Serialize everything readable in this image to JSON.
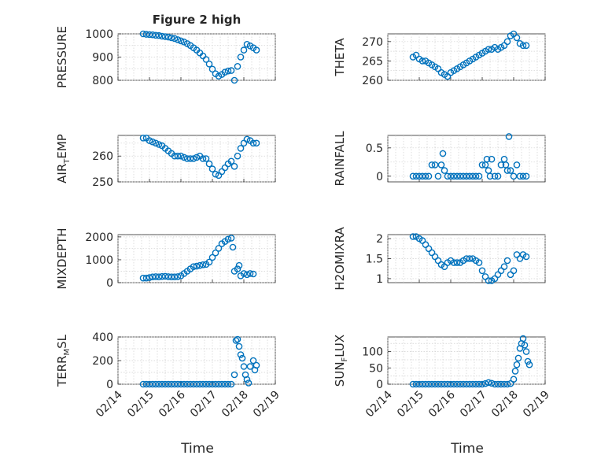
{
  "figure": {
    "title": "Figure 2 high",
    "xlabel": "Time",
    "x_tick_labels": [
      "02/14",
      "02/15",
      "02/16",
      "02/17",
      "02/18",
      "02/19"
    ]
  },
  "chart_data": [
    {
      "type": "scatter",
      "ylabel": "PRESSURE",
      "xlim": [
        0,
        5
      ],
      "ylim": [
        800,
        1000
      ],
      "yticks": [
        800,
        900,
        1000
      ],
      "x_tick_labels": [
        "02/14",
        "02/15",
        "02/16",
        "02/17",
        "02/18",
        "02/19"
      ],
      "marker_color": "#0072BD",
      "points": [
        [
          0.8,
          1000
        ],
        [
          0.9,
          998
        ],
        [
          1.0,
          997
        ],
        [
          1.1,
          996
        ],
        [
          1.2,
          994
        ],
        [
          1.3,
          993
        ],
        [
          1.4,
          990
        ],
        [
          1.5,
          988
        ],
        [
          1.6,
          986
        ],
        [
          1.7,
          983
        ],
        [
          1.8,
          980
        ],
        [
          1.9,
          975
        ],
        [
          2.0,
          970
        ],
        [
          2.1,
          965
        ],
        [
          2.2,
          958
        ],
        [
          2.3,
          950
        ],
        [
          2.4,
          940
        ],
        [
          2.5,
          930
        ],
        [
          2.6,
          918
        ],
        [
          2.7,
          905
        ],
        [
          2.8,
          890
        ],
        [
          2.9,
          870
        ],
        [
          3.0,
          848
        ],
        [
          3.1,
          828
        ],
        [
          3.2,
          818
        ],
        [
          3.3,
          825
        ],
        [
          3.4,
          835
        ],
        [
          3.5,
          840
        ],
        [
          3.6,
          842
        ],
        [
          3.7,
          800
        ],
        [
          3.8,
          860
        ],
        [
          3.9,
          900
        ],
        [
          4.0,
          930
        ],
        [
          4.1,
          955
        ],
        [
          4.2,
          948
        ],
        [
          4.3,
          940
        ],
        [
          4.4,
          930
        ]
      ]
    },
    {
      "type": "scatter",
      "ylabel": "THETA",
      "xlim": [
        0,
        5
      ],
      "ylim": [
        260,
        272
      ],
      "yticks": [
        260,
        265,
        270
      ],
      "x_tick_labels": [
        "02/14",
        "02/15",
        "02/16",
        "02/17",
        "02/18",
        "02/19"
      ],
      "marker_color": "#0072BD",
      "points": [
        [
          0.8,
          266
        ],
        [
          0.9,
          266.5
        ],
        [
          1.0,
          265.5
        ],
        [
          1.1,
          265
        ],
        [
          1.2,
          265
        ],
        [
          1.3,
          264.5
        ],
        [
          1.4,
          264
        ],
        [
          1.5,
          263.5
        ],
        [
          1.6,
          263
        ],
        [
          1.7,
          262
        ],
        [
          1.8,
          261.5
        ],
        [
          1.9,
          261
        ],
        [
          2.0,
          262
        ],
        [
          2.1,
          262.5
        ],
        [
          2.2,
          263
        ],
        [
          2.3,
          263.5
        ],
        [
          2.4,
          264
        ],
        [
          2.5,
          264.5
        ],
        [
          2.6,
          265
        ],
        [
          2.7,
          265.5
        ],
        [
          2.8,
          266
        ],
        [
          2.9,
          266.5
        ],
        [
          3.0,
          267
        ],
        [
          3.1,
          267.5
        ],
        [
          3.2,
          268
        ],
        [
          3.3,
          268
        ],
        [
          3.4,
          268.5
        ],
        [
          3.5,
          268
        ],
        [
          3.6,
          268.5
        ],
        [
          3.7,
          269
        ],
        [
          3.8,
          270
        ],
        [
          3.9,
          271.5
        ],
        [
          4.0,
          272
        ],
        [
          4.1,
          271
        ],
        [
          4.2,
          269.5
        ],
        [
          4.3,
          269
        ],
        [
          4.4,
          269
        ]
      ]
    },
    {
      "type": "scatter",
      "ylabel": "AIR_TEMP",
      "xlim": [
        0,
        5
      ],
      "ylim": [
        250,
        268
      ],
      "yticks": [
        250,
        260
      ],
      "x_tick_labels": [
        "02/14",
        "02/15",
        "02/16",
        "02/17",
        "02/18",
        "02/19"
      ],
      "marker_color": "#0072BD",
      "points": [
        [
          0.8,
          267
        ],
        [
          0.9,
          267
        ],
        [
          1.0,
          266
        ],
        [
          1.1,
          265.5
        ],
        [
          1.2,
          265
        ],
        [
          1.3,
          264.5
        ],
        [
          1.4,
          264
        ],
        [
          1.5,
          263
        ],
        [
          1.6,
          262
        ],
        [
          1.7,
          261
        ],
        [
          1.8,
          260
        ],
        [
          1.9,
          260
        ],
        [
          2.0,
          260
        ],
        [
          2.1,
          259.5
        ],
        [
          2.2,
          259
        ],
        [
          2.3,
          259
        ],
        [
          2.4,
          259
        ],
        [
          2.5,
          259.5
        ],
        [
          2.6,
          260
        ],
        [
          2.7,
          259
        ],
        [
          2.8,
          259
        ],
        [
          2.9,
          257
        ],
        [
          3.0,
          255
        ],
        [
          3.1,
          253
        ],
        [
          3.2,
          252.5
        ],
        [
          3.3,
          254
        ],
        [
          3.4,
          255.5
        ],
        [
          3.5,
          257
        ],
        [
          3.6,
          258
        ],
        [
          3.7,
          256
        ],
        [
          3.8,
          260
        ],
        [
          3.9,
          263
        ],
        [
          4.0,
          265
        ],
        [
          4.1,
          266.5
        ],
        [
          4.2,
          266
        ],
        [
          4.3,
          265
        ],
        [
          4.4,
          265
        ]
      ]
    },
    {
      "type": "scatter",
      "ylabel": "RAINFALL",
      "xlim": [
        0,
        5
      ],
      "ylim": [
        -0.1,
        0.72
      ],
      "yticks": [
        0,
        0.5
      ],
      "x_tick_labels": [
        "02/14",
        "02/15",
        "02/16",
        "02/17",
        "02/18",
        "02/19"
      ],
      "marker_color": "#0072BD",
      "points": [
        [
          0.8,
          0
        ],
        [
          0.9,
          0
        ],
        [
          1.0,
          0
        ],
        [
          1.1,
          0
        ],
        [
          1.2,
          0
        ],
        [
          1.3,
          0
        ],
        [
          1.4,
          0.2
        ],
        [
          1.5,
          0.2
        ],
        [
          1.6,
          0
        ],
        [
          1.7,
          0.2
        ],
        [
          1.75,
          0.4
        ],
        [
          1.8,
          0.1
        ],
        [
          1.9,
          0
        ],
        [
          2.0,
          0
        ],
        [
          2.1,
          0
        ],
        [
          2.2,
          0
        ],
        [
          2.3,
          0
        ],
        [
          2.4,
          0
        ],
        [
          2.5,
          0
        ],
        [
          2.6,
          0
        ],
        [
          2.7,
          0
        ],
        [
          2.8,
          0
        ],
        [
          2.9,
          0
        ],
        [
          3.0,
          0.2
        ],
        [
          3.1,
          0.2
        ],
        [
          3.15,
          0.3
        ],
        [
          3.2,
          0.1
        ],
        [
          3.25,
          0
        ],
        [
          3.3,
          0.3
        ],
        [
          3.4,
          0
        ],
        [
          3.5,
          0
        ],
        [
          3.6,
          0.2
        ],
        [
          3.7,
          0.3
        ],
        [
          3.75,
          0.2
        ],
        [
          3.8,
          0.1
        ],
        [
          3.85,
          0.7
        ],
        [
          3.9,
          0.1
        ],
        [
          4.0,
          0
        ],
        [
          4.1,
          0.2
        ],
        [
          4.2,
          0
        ],
        [
          4.3,
          0
        ],
        [
          4.4,
          0
        ]
      ]
    },
    {
      "type": "scatter",
      "ylabel": "MIXDEPTH",
      "xlim": [
        0,
        5
      ],
      "ylim": [
        0,
        2100
      ],
      "yticks": [
        0,
        1000,
        2000
      ],
      "x_tick_labels": [
        "02/14",
        "02/15",
        "02/16",
        "02/17",
        "02/18",
        "02/19"
      ],
      "marker_color": "#0072BD",
      "points": [
        [
          0.8,
          200
        ],
        [
          0.9,
          200
        ],
        [
          1.0,
          220
        ],
        [
          1.1,
          250
        ],
        [
          1.2,
          260
        ],
        [
          1.3,
          250
        ],
        [
          1.4,
          270
        ],
        [
          1.5,
          280
        ],
        [
          1.6,
          260
        ],
        [
          1.7,
          250
        ],
        [
          1.8,
          250
        ],
        [
          1.9,
          260
        ],
        [
          2.0,
          300
        ],
        [
          2.1,
          400
        ],
        [
          2.2,
          500
        ],
        [
          2.3,
          600
        ],
        [
          2.4,
          700
        ],
        [
          2.5,
          720
        ],
        [
          2.6,
          750
        ],
        [
          2.7,
          780
        ],
        [
          2.8,
          800
        ],
        [
          2.9,
          900
        ],
        [
          3.0,
          1100
        ],
        [
          3.1,
          1300
        ],
        [
          3.2,
          1500
        ],
        [
          3.3,
          1700
        ],
        [
          3.4,
          1800
        ],
        [
          3.5,
          1900
        ],
        [
          3.6,
          1950
        ],
        [
          3.65,
          1550
        ],
        [
          3.7,
          500
        ],
        [
          3.8,
          600
        ],
        [
          3.85,
          750
        ],
        [
          3.9,
          300
        ],
        [
          4.0,
          400
        ],
        [
          4.1,
          350
        ],
        [
          4.2,
          400
        ],
        [
          4.3,
          380
        ]
      ]
    },
    {
      "type": "scatter",
      "ylabel": "H2OMIXRA",
      "xlim": [
        0,
        5
      ],
      "ylim": [
        0.9,
        2.1
      ],
      "yticks": [
        1,
        1.5,
        2
      ],
      "x_tick_labels": [
        "02/14",
        "02/15",
        "02/16",
        "02/17",
        "02/18",
        "02/19"
      ],
      "marker_color": "#0072BD",
      "points": [
        [
          0.8,
          2.05
        ],
        [
          0.9,
          2.05
        ],
        [
          1.0,
          2.0
        ],
        [
          1.1,
          1.95
        ],
        [
          1.2,
          1.85
        ],
        [
          1.3,
          1.75
        ],
        [
          1.4,
          1.65
        ],
        [
          1.5,
          1.55
        ],
        [
          1.6,
          1.45
        ],
        [
          1.7,
          1.35
        ],
        [
          1.8,
          1.3
        ],
        [
          1.9,
          1.4
        ],
        [
          2.0,
          1.45
        ],
        [
          2.1,
          1.4
        ],
        [
          2.2,
          1.4
        ],
        [
          2.3,
          1.4
        ],
        [
          2.4,
          1.45
        ],
        [
          2.5,
          1.5
        ],
        [
          2.6,
          1.5
        ],
        [
          2.7,
          1.5
        ],
        [
          2.8,
          1.45
        ],
        [
          2.9,
          1.4
        ],
        [
          3.0,
          1.2
        ],
        [
          3.1,
          1.05
        ],
        [
          3.2,
          0.95
        ],
        [
          3.3,
          0.95
        ],
        [
          3.4,
          1.0
        ],
        [
          3.5,
          1.1
        ],
        [
          3.6,
          1.2
        ],
        [
          3.7,
          1.3
        ],
        [
          3.8,
          1.45
        ],
        [
          3.9,
          1.1
        ],
        [
          4.0,
          1.2
        ],
        [
          4.1,
          1.6
        ],
        [
          4.2,
          1.5
        ],
        [
          4.3,
          1.6
        ],
        [
          4.4,
          1.55
        ]
      ]
    },
    {
      "type": "scatter",
      "ylabel": "TERR_MSL",
      "xlim": [
        0,
        5
      ],
      "ylim": [
        0,
        400
      ],
      "yticks": [
        0,
        200,
        400
      ],
      "x_tick_labels": [
        "02/14",
        "02/15",
        "02/16",
        "02/17",
        "02/18",
        "02/19"
      ],
      "marker_color": "#0072BD",
      "points": [
        [
          0.8,
          0
        ],
        [
          0.9,
          0
        ],
        [
          1.0,
          0
        ],
        [
          1.1,
          0
        ],
        [
          1.2,
          0
        ],
        [
          1.3,
          0
        ],
        [
          1.4,
          0
        ],
        [
          1.5,
          0
        ],
        [
          1.6,
          0
        ],
        [
          1.7,
          0
        ],
        [
          1.8,
          0
        ],
        [
          1.9,
          0
        ],
        [
          2.0,
          0
        ],
        [
          2.1,
          0
        ],
        [
          2.2,
          0
        ],
        [
          2.3,
          0
        ],
        [
          2.4,
          0
        ],
        [
          2.5,
          0
        ],
        [
          2.6,
          0
        ],
        [
          2.7,
          0
        ],
        [
          2.8,
          0
        ],
        [
          2.9,
          0
        ],
        [
          3.0,
          0
        ],
        [
          3.1,
          0
        ],
        [
          3.2,
          0
        ],
        [
          3.3,
          0
        ],
        [
          3.4,
          0
        ],
        [
          3.5,
          0
        ],
        [
          3.6,
          0
        ],
        [
          3.7,
          80
        ],
        [
          3.75,
          370
        ],
        [
          3.8,
          380
        ],
        [
          3.85,
          320
        ],
        [
          3.9,
          250
        ],
        [
          3.95,
          220
        ],
        [
          4.0,
          150
        ],
        [
          4.05,
          80
        ],
        [
          4.1,
          40
        ],
        [
          4.15,
          10
        ],
        [
          4.2,
          150
        ],
        [
          4.3,
          200
        ],
        [
          4.35,
          120
        ],
        [
          4.4,
          160
        ]
      ]
    },
    {
      "type": "scatter",
      "ylabel": "SUN_FLUX",
      "xlim": [
        0,
        5
      ],
      "ylim": [
        0,
        145
      ],
      "yticks": [
        0,
        50,
        100
      ],
      "x_tick_labels": [
        "02/14",
        "02/15",
        "02/16",
        "02/17",
        "02/18",
        "02/19"
      ],
      "marker_color": "#0072BD",
      "points": [
        [
          0.8,
          0
        ],
        [
          0.9,
          0
        ],
        [
          1.0,
          0
        ],
        [
          1.1,
          0
        ],
        [
          1.2,
          0
        ],
        [
          1.3,
          0
        ],
        [
          1.4,
          0
        ],
        [
          1.5,
          0
        ],
        [
          1.6,
          0
        ],
        [
          1.7,
          0
        ],
        [
          1.8,
          0
        ],
        [
          1.9,
          0
        ],
        [
          2.0,
          0
        ],
        [
          2.1,
          0
        ],
        [
          2.2,
          0
        ],
        [
          2.3,
          0
        ],
        [
          2.4,
          0
        ],
        [
          2.5,
          0
        ],
        [
          2.6,
          0
        ],
        [
          2.7,
          0
        ],
        [
          2.8,
          0
        ],
        [
          2.9,
          0
        ],
        [
          3.0,
          0
        ],
        [
          3.1,
          2
        ],
        [
          3.2,
          5
        ],
        [
          3.3,
          3
        ],
        [
          3.4,
          0
        ],
        [
          3.5,
          0
        ],
        [
          3.6,
          0
        ],
        [
          3.7,
          0
        ],
        [
          3.8,
          0
        ],
        [
          3.9,
          2
        ],
        [
          4.0,
          15
        ],
        [
          4.05,
          40
        ],
        [
          4.1,
          60
        ],
        [
          4.15,
          80
        ],
        [
          4.2,
          110
        ],
        [
          4.25,
          125
        ],
        [
          4.3,
          140
        ],
        [
          4.35,
          120
        ],
        [
          4.4,
          100
        ],
        [
          4.45,
          70
        ],
        [
          4.5,
          60
        ]
      ]
    }
  ]
}
